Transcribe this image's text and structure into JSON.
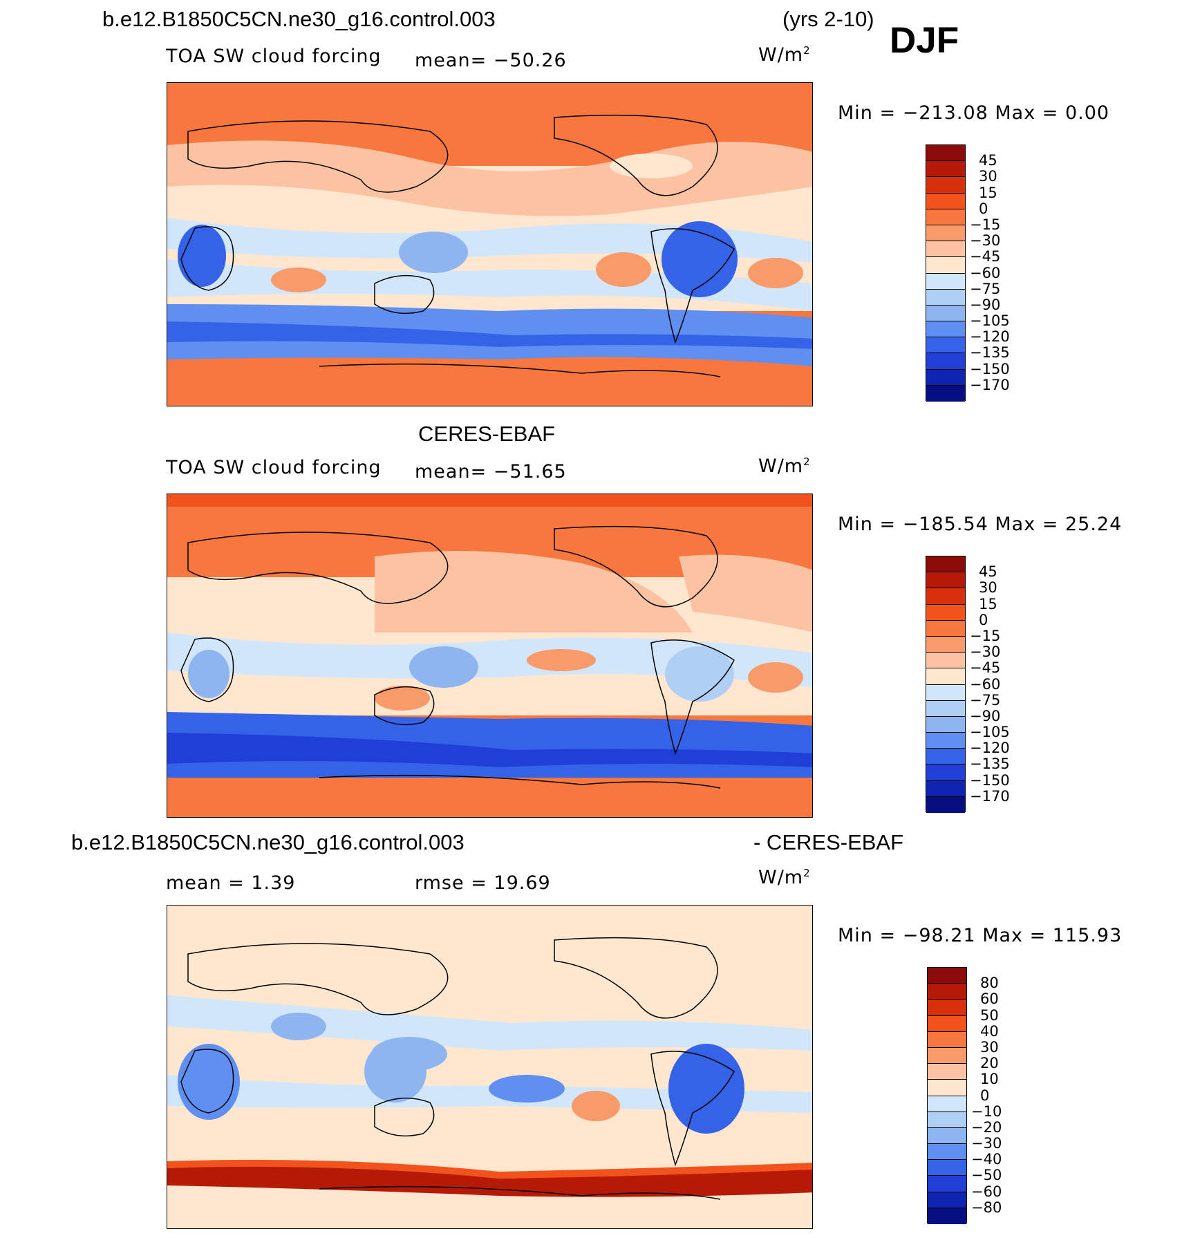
{
  "header": {
    "case_name": "b.e12.B1850C5CN.ne30_g16.control.003",
    "years": "(yrs 2-10)",
    "season": "DJF"
  },
  "panels": [
    {
      "id": "model",
      "title": "",
      "variable": "TOA SW cloud forcing",
      "stat": "mean=  −50.26",
      "units": "W/m",
      "units_sup": "2",
      "minmax": "Min  =  −213.08  Max  =     0.00",
      "colorbar_labels": [
        "45",
        "30",
        "15",
        "0",
        "−15",
        "−30",
        "−45",
        "−60",
        "−75",
        "−90",
        "−105",
        "−120",
        "−135",
        "−150",
        "−170"
      ],
      "colorbar_colors": [
        "#8b0a0a",
        "#b51a06",
        "#d8300b",
        "#f2521c",
        "#f7773f",
        "#f99a6a",
        "#fcc3a3",
        "#fee6cf",
        "#d2e6fa",
        "#b0cff5",
        "#8eb5ef",
        "#5f8ff0",
        "#3563e8",
        "#1f3fd6",
        "#0f25b0",
        "#060f80"
      ]
    },
    {
      "id": "obs",
      "title": "CERES-EBAF",
      "variable": "TOA SW cloud forcing",
      "stat": "mean=  −51.65",
      "units": "W/m",
      "units_sup": "2",
      "minmax": "Min  =  −185.54  Max  =   25.24",
      "colorbar_labels": [
        "45",
        "30",
        "15",
        "0",
        "−15",
        "−30",
        "−45",
        "−60",
        "−75",
        "−90",
        "−105",
        "−120",
        "−135",
        "−150",
        "−170"
      ],
      "colorbar_colors": [
        "#8b0a0a",
        "#b51a06",
        "#d8300b",
        "#f2521c",
        "#f7773f",
        "#f99a6a",
        "#fcc3a3",
        "#fee6cf",
        "#d2e6fa",
        "#b0cff5",
        "#8eb5ef",
        "#5f8ff0",
        "#3563e8",
        "#1f3fd6",
        "#0f25b0",
        "#060f80"
      ]
    },
    {
      "id": "diff",
      "title_left": "b.e12.B1850C5CN.ne30_g16.control.003",
      "title_right": "- CERES-EBAF",
      "mean": "mean  =     1.39",
      "rmse": "rmse  =    19.69",
      "units": "W/m",
      "units_sup": "2",
      "minmax": "Min  =  −98.21  Max  =  115.93",
      "colorbar_labels": [
        "80",
        "60",
        "50",
        "40",
        "30",
        "20",
        "10",
        "0",
        "−10",
        "−20",
        "−30",
        "−40",
        "−50",
        "−60",
        "−80"
      ],
      "colorbar_colors": [
        "#8b0a0a",
        "#b51a06",
        "#d8300b",
        "#f2521c",
        "#f7773f",
        "#f99a6a",
        "#fcc3a3",
        "#fee6cf",
        "#d2e6fa",
        "#b0cff5",
        "#8eb5ef",
        "#5f8ff0",
        "#3563e8",
        "#1f3fd6",
        "#0f25b0",
        "#060f80"
      ]
    }
  ]
}
